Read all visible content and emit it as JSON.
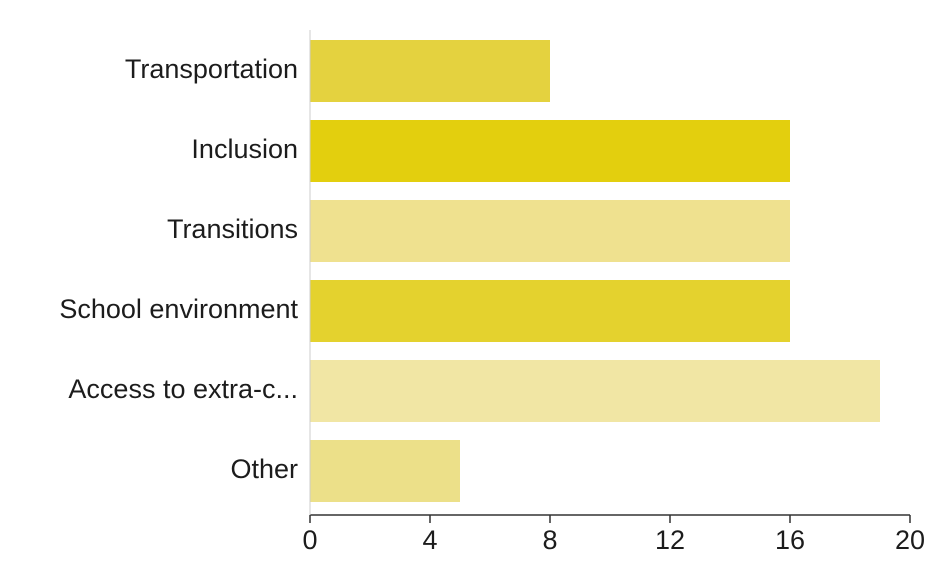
{
  "chart_data": {
    "type": "bar",
    "orientation": "horizontal",
    "categories": [
      "Transportation",
      "Inclusion",
      "Transitions",
      "School environment",
      "Access to extra-c...",
      "Other"
    ],
    "values": [
      8,
      16,
      16,
      16,
      19,
      5
    ],
    "bar_colors": [
      "#e4d23f",
      "#e3cf0e",
      "#efe18f",
      "#e4d22e",
      "#f1e6a4",
      "#ece089"
    ],
    "xlim": [
      0,
      20
    ],
    "xticks": [
      "0",
      "4",
      "8",
      "12",
      "16",
      "20"
    ],
    "title": "",
    "xlabel": "",
    "ylabel": "",
    "grid": false,
    "legend": "none"
  }
}
